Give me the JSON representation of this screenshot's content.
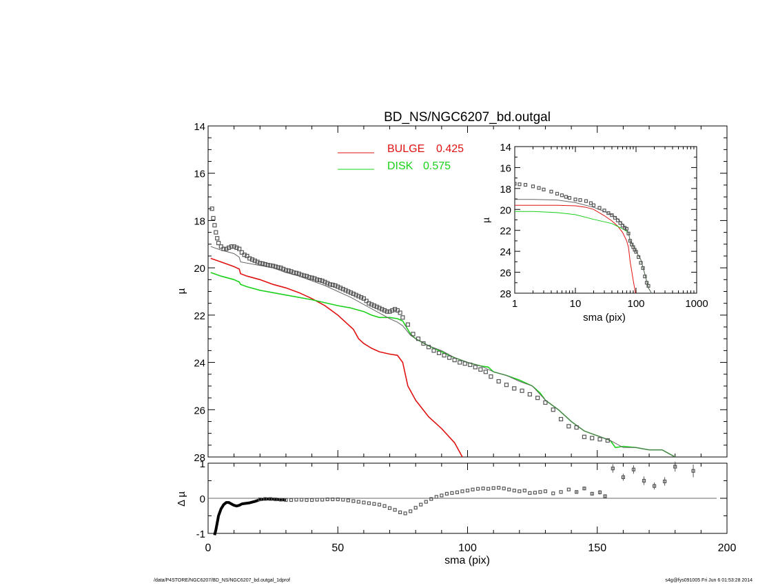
{
  "chart_data": [
    {
      "id": "main",
      "type": "line",
      "title": "BD_NS/NGC6207_bd.outgal",
      "xlabel": "",
      "ylabel": "µ",
      "xlim": [
        0,
        200
      ],
      "ylim": [
        28,
        14
      ],
      "y_inverted": true,
      "yticks": [
        14,
        16,
        18,
        20,
        22,
        24,
        26,
        28
      ],
      "legend_position": "top-center",
      "legend": [
        {
          "label": "BULGE",
          "value": "0.425",
          "color": "#e01010"
        },
        {
          "label": "DISK",
          "value": "0.575",
          "color": "#18d018"
        }
      ],
      "series": [
        {
          "name": "BULGE",
          "color": "#e01010",
          "style": "line",
          "x": [
            1,
            5,
            10,
            12,
            12.5,
            15,
            20,
            25,
            30,
            35,
            40,
            45,
            50,
            53,
            56,
            58,
            60,
            63,
            66,
            70,
            73,
            75,
            77,
            80,
            85,
            90,
            95,
            98
          ],
          "y": [
            19.6,
            19.75,
            19.95,
            20.05,
            20.25,
            20.35,
            20.5,
            20.7,
            20.85,
            21.05,
            21.3,
            21.6,
            22.0,
            22.3,
            22.6,
            23.0,
            23.2,
            23.4,
            23.55,
            23.65,
            23.7,
            24.0,
            25.0,
            25.6,
            26.3,
            26.8,
            27.4,
            28.0
          ]
        },
        {
          "name": "DISK",
          "color": "#18d018",
          "style": "line",
          "x": [
            1,
            5,
            10,
            12,
            12.5,
            15,
            20,
            30,
            40,
            50,
            55,
            60,
            63,
            66,
            70,
            73,
            75,
            78,
            80,
            85,
            90,
            95,
            100,
            105,
            108,
            110,
            115,
            120,
            125,
            128,
            130,
            135,
            140,
            145,
            150,
            155,
            157,
            160,
            165,
            170,
            175,
            180
          ],
          "y": [
            20.2,
            20.35,
            20.5,
            20.6,
            20.7,
            20.8,
            20.95,
            21.15,
            21.35,
            21.6,
            21.7,
            21.85,
            22.0,
            22.1,
            22.1,
            22.15,
            22.25,
            22.8,
            23.0,
            23.3,
            23.55,
            23.8,
            24.0,
            24.15,
            24.2,
            24.4,
            24.55,
            24.75,
            25.0,
            25.3,
            25.6,
            26.0,
            26.5,
            26.9,
            27.1,
            27.3,
            27.6,
            27.55,
            27.6,
            27.7,
            27.7,
            28.0
          ]
        },
        {
          "name": "",
          "color": "#666666",
          "style": "line",
          "x": [
            1,
            5,
            10,
            12,
            12.5,
            15,
            20,
            25,
            30,
            35,
            40,
            45,
            50,
            55,
            60,
            65,
            70,
            73,
            75,
            78,
            80,
            85,
            90,
            95,
            100,
            105,
            110,
            115,
            120,
            125,
            130,
            135,
            140,
            145,
            150,
            155,
            160,
            165,
            170,
            175,
            180
          ],
          "y": [
            19.1,
            19.25,
            19.4,
            19.55,
            19.75,
            19.8,
            19.9,
            20.0,
            20.2,
            20.35,
            20.55,
            20.75,
            21.0,
            21.25,
            21.55,
            21.85,
            22.15,
            22.3,
            22.45,
            22.85,
            23.0,
            23.3,
            23.5,
            23.8,
            24.0,
            24.15,
            24.4,
            24.55,
            24.8,
            25.0,
            25.6,
            26.0,
            26.5,
            26.9,
            27.1,
            27.3,
            27.6,
            27.6,
            27.7,
            27.7,
            28.0
          ]
        },
        {
          "name": "",
          "color": "#555555",
          "style": "markers",
          "x": [
            1.5,
            2,
            2.5,
            3,
            3.5,
            4,
            5,
            6,
            7,
            8,
            9,
            10,
            11,
            12,
            13,
            14,
            15,
            16,
            17,
            18,
            19,
            20,
            21,
            22,
            23,
            24,
            25,
            26,
            27,
            28,
            29,
            30,
            31,
            32,
            33,
            34,
            35,
            36,
            37,
            38,
            39,
            40,
            41,
            42,
            43,
            44,
            45,
            46,
            47,
            48,
            49,
            50,
            51,
            52,
            53,
            54,
            55,
            56,
            57,
            58,
            59,
            60,
            61,
            62,
            63,
            64,
            65,
            66,
            67,
            68,
            69,
            70,
            71,
            72,
            73,
            74,
            75,
            77,
            79,
            81,
            83,
            85,
            87,
            89,
            91,
            93,
            95,
            97,
            99,
            101,
            103,
            105,
            107,
            109,
            112,
            115,
            118,
            121,
            124,
            127,
            130,
            133,
            136,
            139,
            142,
            145,
            148,
            151,
            154
          ],
          "y": [
            17.5,
            17.9,
            18.2,
            18.5,
            18.75,
            18.95,
            19.1,
            19.2,
            19.2,
            19.15,
            19.1,
            19.1,
            19.15,
            19.2,
            19.35,
            19.45,
            19.5,
            19.6,
            19.65,
            19.7,
            19.75,
            19.8,
            19.82,
            19.85,
            19.88,
            19.9,
            19.92,
            19.95,
            19.98,
            20.0,
            20.05,
            20.1,
            20.12,
            20.15,
            20.2,
            20.22,
            20.25,
            20.3,
            20.33,
            20.35,
            20.4,
            20.42,
            20.45,
            20.5,
            20.52,
            20.55,
            20.6,
            20.65,
            20.7,
            20.72,
            20.75,
            20.8,
            20.85,
            20.9,
            20.95,
            21.0,
            21.05,
            21.1,
            21.15,
            21.2,
            21.25,
            21.3,
            21.4,
            21.5,
            21.55,
            21.6,
            21.65,
            21.7,
            21.75,
            21.8,
            21.85,
            21.85,
            21.8,
            21.75,
            21.8,
            21.9,
            22.1,
            22.4,
            22.8,
            23.0,
            23.2,
            23.35,
            23.5,
            23.6,
            23.7,
            23.8,
            23.9,
            24.0,
            24.05,
            24.1,
            24.2,
            24.3,
            24.4,
            24.6,
            24.8,
            24.95,
            25.1,
            25.2,
            25.35,
            25.5,
            25.7,
            26.0,
            26.4,
            26.7,
            26.75,
            27.15,
            27.2,
            27.25,
            27.3
          ]
        }
      ]
    },
    {
      "id": "inset",
      "type": "line",
      "title": "",
      "xlabel": "sma (pix)",
      "ylabel": "µ",
      "xscale": "log",
      "xlim": [
        1,
        1000
      ],
      "ylim": [
        28,
        14
      ],
      "y_inverted": true,
      "xtick_labels": [
        "1",
        "10",
        "100",
        "1000"
      ],
      "yticks": [
        14,
        16,
        18,
        20,
        22,
        24,
        26,
        28
      ],
      "series": [
        {
          "name": "BULGE",
          "color": "#e01010",
          "style": "line",
          "x": [
            1,
            2,
            5,
            10,
            15,
            20,
            30,
            40,
            50,
            60,
            70,
            75,
            80,
            90,
            98
          ],
          "y": [
            19.6,
            19.6,
            19.6,
            19.65,
            19.8,
            20.0,
            20.6,
            21.1,
            21.6,
            22.2,
            23.0,
            23.6,
            25.0,
            26.8,
            28.0
          ]
        },
        {
          "name": "DISK",
          "color": "#18d018",
          "style": "line",
          "x": [
            1,
            2,
            5,
            10,
            20,
            40,
            60,
            75,
            80,
            90,
            100,
            120,
            140,
            160,
            180
          ],
          "y": [
            20.2,
            20.2,
            20.3,
            20.5,
            20.95,
            21.35,
            21.85,
            22.2,
            23.0,
            23.5,
            24.0,
            24.8,
            26.2,
            27.5,
            28.0
          ]
        },
        {
          "name": "",
          "color": "#666666",
          "style": "line",
          "x": [
            1,
            2,
            5,
            10,
            20,
            30,
            40,
            50,
            60,
            70,
            75,
            80,
            90,
            100,
            120,
            140,
            160,
            180
          ],
          "y": [
            19.05,
            19.05,
            19.1,
            19.35,
            19.8,
            20.2,
            20.5,
            20.9,
            21.4,
            21.95,
            22.2,
            23.0,
            23.5,
            24.0,
            24.8,
            26.2,
            27.5,
            28.0
          ]
        },
        {
          "name": "",
          "color": "#555555",
          "style": "markers",
          "x": [
            1,
            1.2,
            1.5,
            2,
            2.5,
            3,
            4,
            5,
            6,
            7,
            8,
            10,
            12,
            15,
            18,
            20,
            25,
            30,
            35,
            40,
            45,
            50,
            55,
            60,
            65,
            70,
            75,
            80,
            85,
            90,
            95,
            100,
            110,
            120,
            130,
            140,
            150,
            160
          ],
          "y": [
            17.55,
            17.6,
            17.65,
            17.8,
            17.95,
            18.1,
            18.3,
            18.5,
            18.65,
            18.8,
            18.9,
            19.05,
            19.1,
            19.2,
            19.4,
            19.6,
            19.85,
            20.1,
            20.35,
            20.55,
            20.8,
            21.05,
            21.3,
            21.55,
            21.75,
            21.85,
            22.3,
            23.0,
            23.35,
            23.6,
            23.85,
            24.05,
            24.55,
            25.1,
            25.6,
            26.4,
            27.0,
            27.3
          ]
        }
      ]
    },
    {
      "id": "residual",
      "type": "scatter",
      "title": "",
      "xlabel": "sma (pix)",
      "ylabel": "Δ µ",
      "xlim": [
        0,
        200
      ],
      "ylim": [
        -1,
        1
      ],
      "xticks": [
        0,
        50,
        100,
        150,
        200
      ],
      "yticks": [
        -1,
        0,
        1
      ],
      "zero_line": {
        "x_range": [
          0,
          196
        ],
        "color": "#666666"
      },
      "band": {
        "name": "",
        "color": "#000000",
        "x": [
          2.5,
          3,
          3.5,
          4,
          5,
          6,
          7,
          8,
          9,
          10,
          11,
          12,
          13,
          14,
          15,
          16,
          18,
          20,
          22,
          24,
          26,
          28,
          30
        ],
        "y": [
          -1.05,
          -0.9,
          -0.7,
          -0.5,
          -0.3,
          -0.18,
          -0.12,
          -0.12,
          -0.16,
          -0.2,
          -0.22,
          -0.2,
          -0.16,
          -0.15,
          -0.14,
          -0.13,
          -0.09,
          -0.04,
          -0.02,
          -0.02,
          -0.03,
          -0.04,
          -0.05
        ]
      },
      "series": [
        {
          "name": "",
          "color": "#555555",
          "style": "markers",
          "x": [
            20,
            22,
            24,
            26,
            28,
            30,
            32,
            34,
            36,
            38,
            40,
            42,
            44,
            46,
            48,
            50,
            52,
            54,
            56,
            58,
            60,
            62,
            64,
            66,
            68,
            70,
            72,
            74,
            76,
            78,
            80,
            82,
            84,
            86,
            88,
            90,
            92,
            94,
            96,
            98,
            100,
            102,
            104,
            106,
            108,
            110,
            112,
            114,
            116,
            118,
            120,
            122,
            124,
            126,
            128,
            130,
            133,
            136,
            139
          ],
          "y": [
            -0.03,
            -0.02,
            -0.02,
            -0.03,
            -0.04,
            -0.05,
            -0.05,
            -0.04,
            -0.04,
            -0.05,
            -0.05,
            -0.04,
            -0.04,
            -0.03,
            -0.03,
            -0.03,
            -0.04,
            -0.06,
            -0.08,
            -0.1,
            -0.12,
            -0.14,
            -0.16,
            -0.18,
            -0.22,
            -0.28,
            -0.33,
            -0.4,
            -0.43,
            -0.37,
            -0.27,
            -0.18,
            -0.1,
            -0.02,
            0.04,
            0.08,
            0.13,
            0.15,
            0.17,
            0.2,
            0.22,
            0.25,
            0.27,
            0.28,
            0.27,
            0.29,
            0.3,
            0.28,
            0.25,
            0.22,
            0.2,
            0.22,
            0.15,
            0.16,
            0.18,
            0.2,
            0.14,
            0.18,
            0.25
          ]
        },
        {
          "name": "",
          "color": "#555555",
          "style": "errorbars",
          "x": [
            142,
            145,
            148,
            151,
            153,
            156,
            160,
            164,
            168,
            172,
            176,
            180,
            187
          ],
          "y": [
            0.18,
            0.28,
            0.13,
            0.17,
            0.06,
            0.85,
            0.6,
            0.82,
            0.5,
            0.35,
            0.48,
            0.9,
            0.78
          ],
          "err": [
            0.03,
            0.05,
            0.04,
            0.06,
            0.05,
            0.12,
            0.1,
            0.12,
            0.12,
            0.1,
            0.12,
            0.14,
            0.18
          ]
        }
      ]
    }
  ],
  "footer": {
    "left": "/data/P4STORE/NGC6207/BD_NS/NGC6207_bd.outgal_1dprof",
    "right": "s4g@fys091005  Fri Jun  6 01:53:28 2014"
  }
}
